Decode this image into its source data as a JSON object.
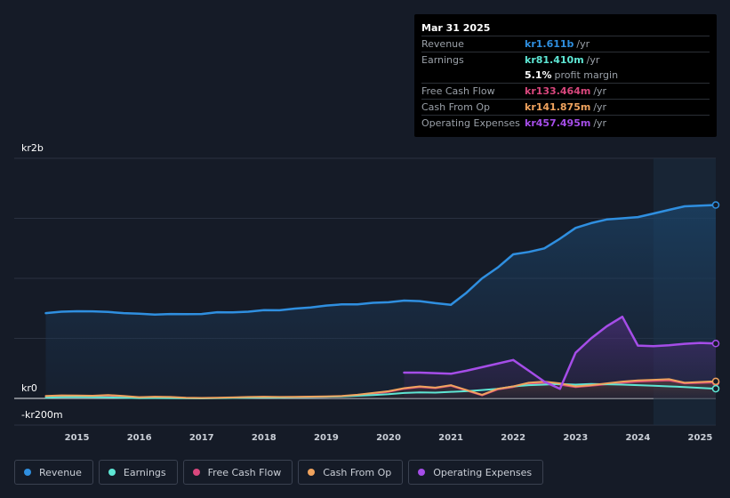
{
  "tooltip": {
    "date": "Mar 31 2025",
    "rows": {
      "revenue": {
        "label": "Revenue",
        "value": "kr1.611b",
        "unit": "/yr",
        "color": "#2f8fe0"
      },
      "earnings": {
        "label": "Earnings",
        "value": "kr81.410m",
        "unit": "/yr",
        "color": "#5ee6d4"
      },
      "margin": {
        "value": "5.1%",
        "unit": "profit margin",
        "color": "#ffffff"
      },
      "fcf": {
        "label": "Free Cash Flow",
        "value": "kr133.464m",
        "unit": "/yr",
        "color": "#d9477d"
      },
      "cfo": {
        "label": "Cash From Op",
        "value": "kr141.875m",
        "unit": "/yr",
        "color": "#f0a35e"
      },
      "opex": {
        "label": "Operating Expenses",
        "value": "kr457.495m",
        "unit": "/yr",
        "color": "#a54de8"
      }
    }
  },
  "chart_data": {
    "type": "line",
    "title": "",
    "x_ticks": [
      "2015",
      "2016",
      "2017",
      "2018",
      "2019",
      "2020",
      "2021",
      "2022",
      "2023",
      "2024",
      "2025"
    ],
    "y_labels": {
      "top": "kr2b",
      "zero": "kr0",
      "bottom": "-kr200m"
    },
    "ylim": [
      -200,
      2000
    ],
    "xlim": [
      2014.45,
      2025.25
    ],
    "y_gridlines": [
      0,
      500,
      1000,
      1500,
      2000
    ],
    "forecast_shade_from": 2024.25,
    "series": [
      {
        "name": "Revenue",
        "color": "#2f8fe0",
        "fill": true,
        "points": [
          [
            2014.5,
            710
          ],
          [
            2014.75,
            722
          ],
          [
            2015.0,
            726
          ],
          [
            2015.25,
            725
          ],
          [
            2015.5,
            720
          ],
          [
            2015.75,
            710
          ],
          [
            2016.0,
            705
          ],
          [
            2016.25,
            698
          ],
          [
            2016.5,
            703
          ],
          [
            2016.75,
            702
          ],
          [
            2017.0,
            703
          ],
          [
            2017.25,
            718
          ],
          [
            2017.5,
            716
          ],
          [
            2017.75,
            722
          ],
          [
            2018.0,
            735
          ],
          [
            2018.25,
            734
          ],
          [
            2018.5,
            748
          ],
          [
            2018.75,
            757
          ],
          [
            2019.0,
            773
          ],
          [
            2019.25,
            783
          ],
          [
            2019.5,
            784
          ],
          [
            2019.75,
            796
          ],
          [
            2020.0,
            801
          ],
          [
            2020.25,
            815
          ],
          [
            2020.5,
            810
          ],
          [
            2020.75,
            793
          ],
          [
            2021.0,
            780
          ],
          [
            2021.25,
            880
          ],
          [
            2021.5,
            1000
          ],
          [
            2021.75,
            1090
          ],
          [
            2022.0,
            1200
          ],
          [
            2022.25,
            1220
          ],
          [
            2022.5,
            1250
          ],
          [
            2022.75,
            1330
          ],
          [
            2023.0,
            1420
          ],
          [
            2023.25,
            1460
          ],
          [
            2023.5,
            1490
          ],
          [
            2023.75,
            1500
          ],
          [
            2024.0,
            1510
          ],
          [
            2024.25,
            1540
          ],
          [
            2024.5,
            1570
          ],
          [
            2024.75,
            1600
          ],
          [
            2025.25,
            1611
          ]
        ]
      },
      {
        "name": "Operating Expenses",
        "color": "#a54de8",
        "fill": true,
        "points": [
          [
            2020.25,
            215
          ],
          [
            2020.5,
            215
          ],
          [
            2020.75,
            210
          ],
          [
            2021.0,
            205
          ],
          [
            2021.25,
            230
          ],
          [
            2021.5,
            260
          ],
          [
            2021.75,
            290
          ],
          [
            2022.0,
            320
          ],
          [
            2022.25,
            230
          ],
          [
            2022.5,
            140
          ],
          [
            2022.75,
            80
          ],
          [
            2023.0,
            380
          ],
          [
            2023.25,
            500
          ],
          [
            2023.5,
            600
          ],
          [
            2023.75,
            680
          ],
          [
            2024.0,
            440
          ],
          [
            2024.25,
            435
          ],
          [
            2024.5,
            442
          ],
          [
            2024.75,
            455
          ],
          [
            2025.0,
            462
          ],
          [
            2025.25,
            457
          ]
        ]
      },
      {
        "name": "Cash From Op",
        "color": "#f0a35e",
        "fill": true,
        "points": [
          [
            2014.5,
            20
          ],
          [
            2014.75,
            25
          ],
          [
            2015.0,
            24
          ],
          [
            2015.25,
            22
          ],
          [
            2015.5,
            28
          ],
          [
            2015.75,
            20
          ],
          [
            2016.0,
            10
          ],
          [
            2016.25,
            14
          ],
          [
            2016.5,
            12
          ],
          [
            2016.75,
            5
          ],
          [
            2017.0,
            4
          ],
          [
            2017.25,
            6
          ],
          [
            2017.5,
            8
          ],
          [
            2017.75,
            12
          ],
          [
            2018.0,
            14
          ],
          [
            2018.25,
            12
          ],
          [
            2018.5,
            13
          ],
          [
            2018.75,
            15
          ],
          [
            2019.0,
            16
          ],
          [
            2019.25,
            20
          ],
          [
            2019.5,
            30
          ],
          [
            2019.75,
            45
          ],
          [
            2020.0,
            60
          ],
          [
            2020.25,
            85
          ],
          [
            2020.5,
            100
          ],
          [
            2020.75,
            90
          ],
          [
            2021.0,
            110
          ],
          [
            2021.25,
            70
          ],
          [
            2021.5,
            30
          ],
          [
            2021.75,
            80
          ],
          [
            2022.0,
            100
          ],
          [
            2022.25,
            130
          ],
          [
            2022.5,
            140
          ],
          [
            2022.75,
            125
          ],
          [
            2023.0,
            100
          ],
          [
            2023.25,
            110
          ],
          [
            2023.5,
            125
          ],
          [
            2023.75,
            140
          ],
          [
            2024.0,
            150
          ],
          [
            2024.25,
            155
          ],
          [
            2024.5,
            160
          ],
          [
            2024.75,
            130
          ],
          [
            2025.25,
            142
          ]
        ]
      },
      {
        "name": "Free Cash Flow",
        "color": "#d9477d",
        "fill": false,
        "points": [
          [
            2014.5,
            18
          ],
          [
            2014.75,
            22
          ],
          [
            2015.0,
            20
          ],
          [
            2015.25,
            20
          ],
          [
            2015.5,
            24
          ],
          [
            2015.75,
            18
          ],
          [
            2016.0,
            8
          ],
          [
            2016.25,
            12
          ],
          [
            2016.5,
            10
          ],
          [
            2016.75,
            3
          ],
          [
            2017.0,
            2
          ],
          [
            2017.25,
            4
          ],
          [
            2017.5,
            6
          ],
          [
            2017.75,
            10
          ],
          [
            2018.0,
            12
          ],
          [
            2018.25,
            10
          ],
          [
            2018.5,
            11
          ],
          [
            2018.75,
            13
          ],
          [
            2019.0,
            14
          ],
          [
            2019.25,
            18
          ],
          [
            2019.5,
            26
          ],
          [
            2019.75,
            40
          ],
          [
            2020.0,
            55
          ],
          [
            2020.25,
            80
          ],
          [
            2020.5,
            95
          ],
          [
            2020.75,
            85
          ],
          [
            2021.0,
            105
          ],
          [
            2021.25,
            65
          ],
          [
            2021.5,
            25
          ],
          [
            2021.75,
            75
          ],
          [
            2022.0,
            95
          ],
          [
            2022.25,
            120
          ],
          [
            2022.5,
            130
          ],
          [
            2022.75,
            115
          ],
          [
            2023.0,
            95
          ],
          [
            2023.25,
            105
          ],
          [
            2023.5,
            118
          ],
          [
            2023.75,
            130
          ],
          [
            2024.0,
            140
          ],
          [
            2024.25,
            145
          ],
          [
            2024.5,
            150
          ],
          [
            2024.75,
            125
          ],
          [
            2025.25,
            133
          ]
        ]
      },
      {
        "name": "Earnings",
        "color": "#5ee6d4",
        "fill": false,
        "points": [
          [
            2014.5,
            5
          ],
          [
            2014.75,
            10
          ],
          [
            2015.0,
            12
          ],
          [
            2015.25,
            10
          ],
          [
            2015.5,
            8
          ],
          [
            2015.75,
            5
          ],
          [
            2016.0,
            2
          ],
          [
            2016.25,
            3
          ],
          [
            2016.5,
            2
          ],
          [
            2016.75,
            1
          ],
          [
            2017.0,
            0
          ],
          [
            2017.25,
            2
          ],
          [
            2017.5,
            4
          ],
          [
            2017.75,
            6
          ],
          [
            2018.0,
            8
          ],
          [
            2018.25,
            7
          ],
          [
            2018.5,
            10
          ],
          [
            2018.75,
            12
          ],
          [
            2019.0,
            14
          ],
          [
            2019.25,
            16
          ],
          [
            2019.5,
            22
          ],
          [
            2019.75,
            28
          ],
          [
            2020.0,
            35
          ],
          [
            2020.25,
            45
          ],
          [
            2020.5,
            50
          ],
          [
            2020.75,
            48
          ],
          [
            2021.0,
            55
          ],
          [
            2021.25,
            60
          ],
          [
            2021.5,
            70
          ],
          [
            2021.75,
            80
          ],
          [
            2022.0,
            100
          ],
          [
            2022.25,
            110
          ],
          [
            2022.5,
            115
          ],
          [
            2022.75,
            120
          ],
          [
            2023.0,
            115
          ],
          [
            2023.25,
            120
          ],
          [
            2023.5,
            118
          ],
          [
            2023.75,
            115
          ],
          [
            2024.0,
            110
          ],
          [
            2024.25,
            105
          ],
          [
            2024.5,
            100
          ],
          [
            2024.75,
            95
          ],
          [
            2025.25,
            81
          ]
        ]
      },
      {
        "name": "Revenue-line",
        "ref": "Revenue"
      }
    ]
  },
  "legend": [
    {
      "label": "Revenue",
      "color": "#2f8fe0"
    },
    {
      "label": "Earnings",
      "color": "#5ee6d4"
    },
    {
      "label": "Free Cash Flow",
      "color": "#d9477d"
    },
    {
      "label": "Cash From Op",
      "color": "#f0a35e"
    },
    {
      "label": "Operating Expenses",
      "color": "#a54de8"
    }
  ]
}
